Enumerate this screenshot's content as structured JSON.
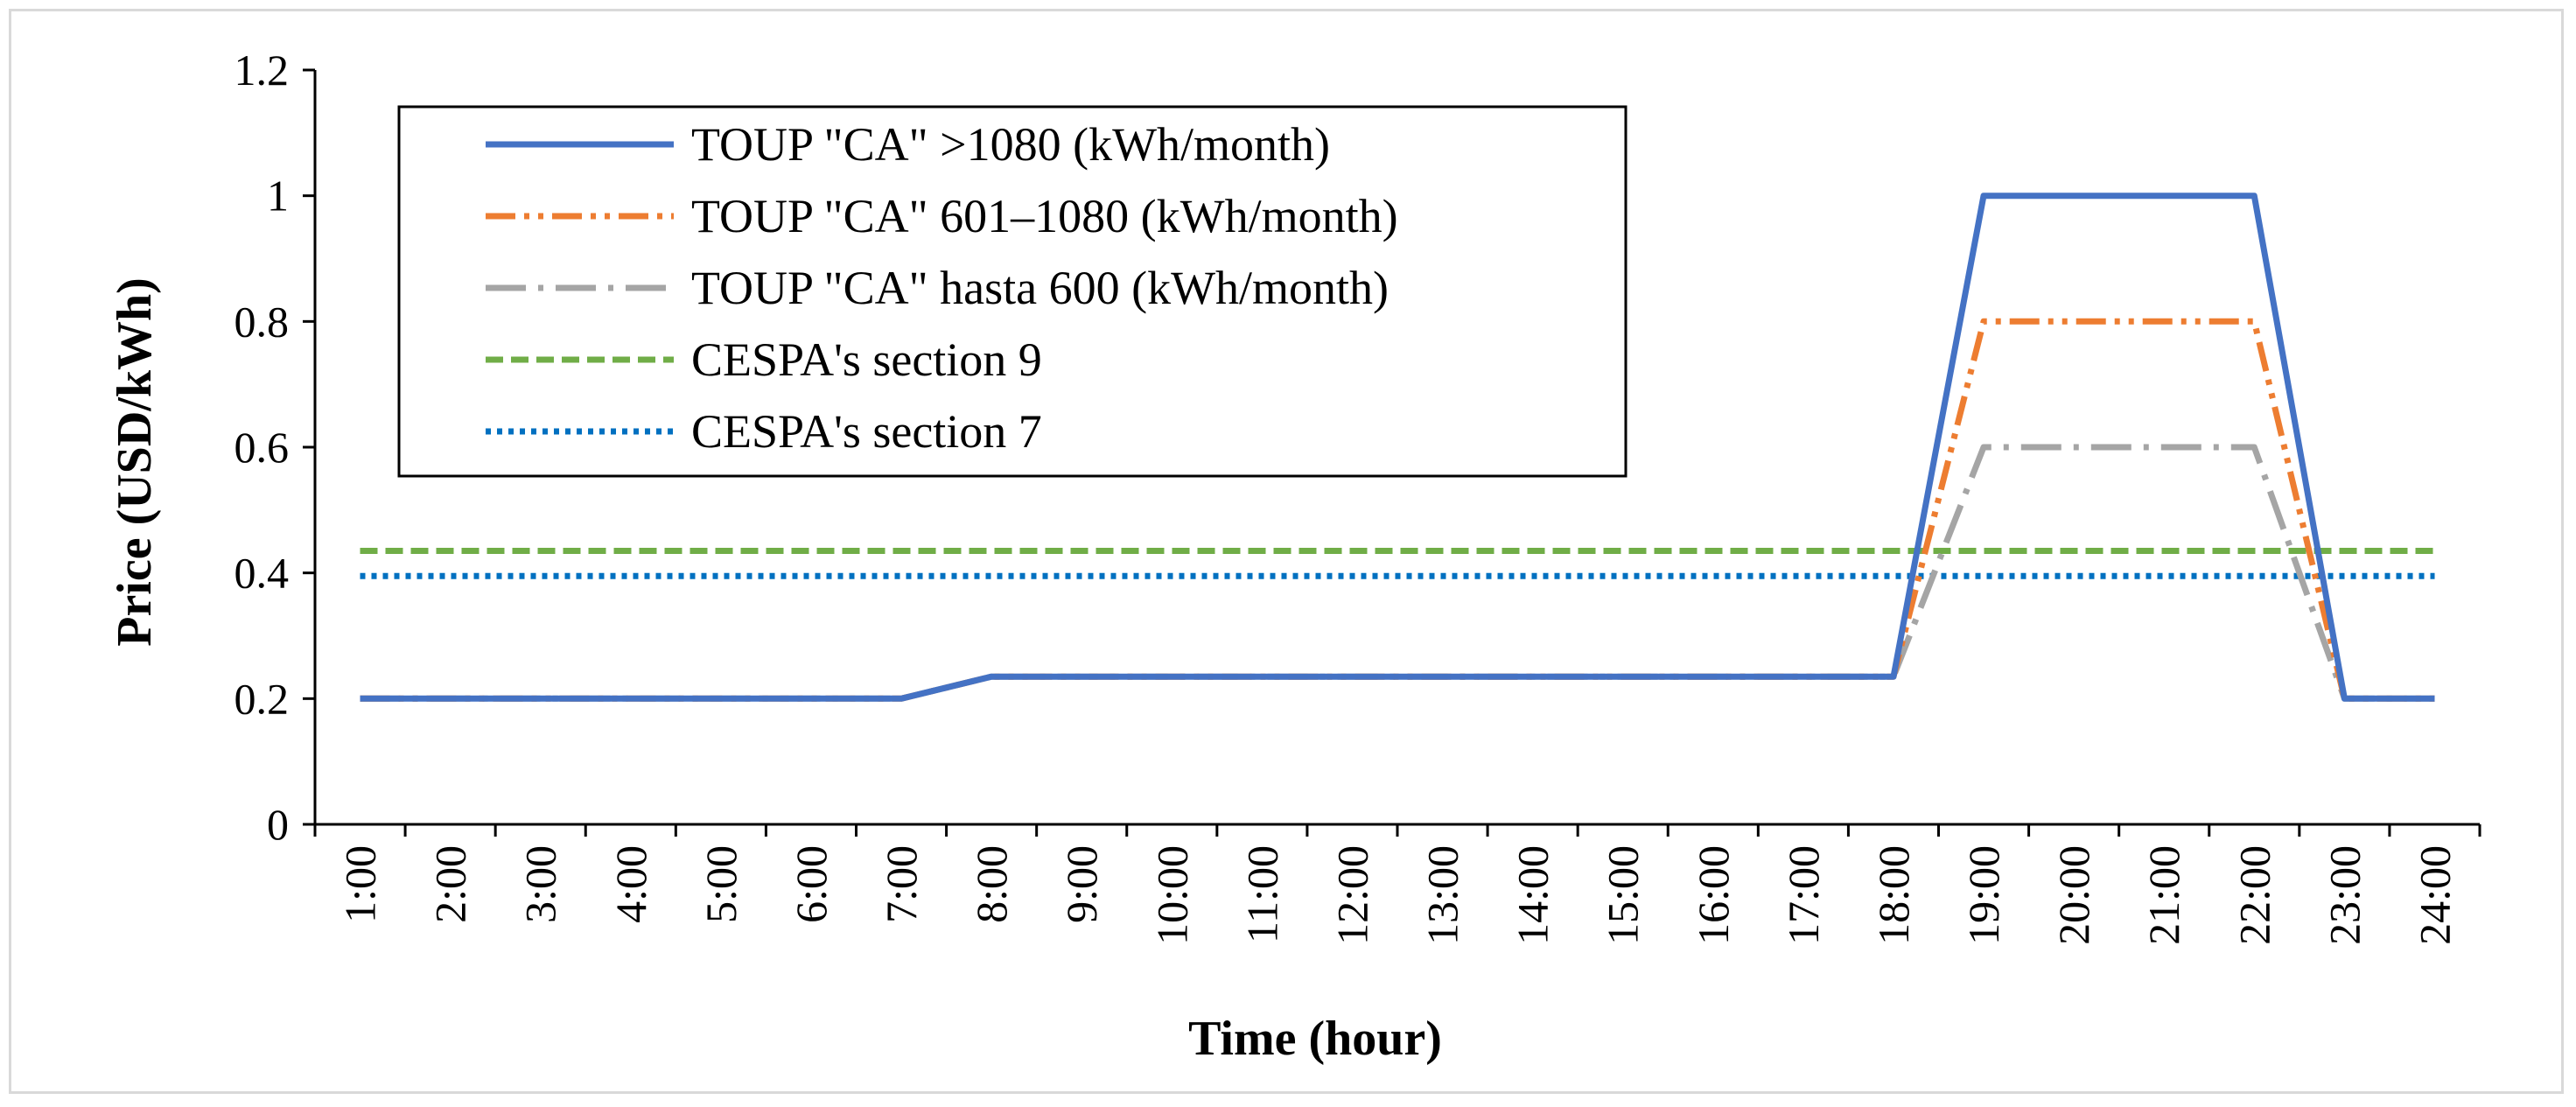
{
  "chart_data": {
    "type": "line",
    "title": "",
    "xlabel": "Time (hour)",
    "ylabel": "Price (USD/kWh)",
    "ylim": [
      0,
      1.2
    ],
    "yticks": [
      0,
      0.2,
      0.4,
      0.6,
      0.8,
      1,
      1.2
    ],
    "ytick_labels": [
      "0",
      "0.2",
      "0.4",
      "0.6",
      "0.8",
      "1",
      "1.2"
    ],
    "categories": [
      "1:00",
      "2:00",
      "3:00",
      "4:00",
      "5:00",
      "6:00",
      "7:00",
      "8:00",
      "9:00",
      "10:00",
      "11:00",
      "12:00",
      "13:00",
      "14:00",
      "15:00",
      "16:00",
      "17:00",
      "18:00",
      "19:00",
      "20:00",
      "21:00",
      "22:00",
      "23:00",
      "24:00"
    ],
    "legend_position": "top-left",
    "series": [
      {
        "name": "TOUP \"CA\" >1080 (kWh/month)",
        "color": "#4472C4",
        "style": "solid",
        "values": [
          0.2,
          0.2,
          0.2,
          0.2,
          0.2,
          0.2,
          0.2,
          0.235,
          0.235,
          0.235,
          0.235,
          0.235,
          0.235,
          0.235,
          0.235,
          0.235,
          0.235,
          0.235,
          1.0,
          1.0,
          1.0,
          1.0,
          0.2,
          0.2
        ]
      },
      {
        "name": "TOUP \"CA\" 601–1080 (kWh/month)",
        "color": "#ED7D31",
        "style": "dash-dot-dot",
        "values": [
          0.2,
          0.2,
          0.2,
          0.2,
          0.2,
          0.2,
          0.2,
          0.235,
          0.235,
          0.235,
          0.235,
          0.235,
          0.235,
          0.235,
          0.235,
          0.235,
          0.235,
          0.235,
          0.8,
          0.8,
          0.8,
          0.8,
          0.2,
          0.2
        ]
      },
      {
        "name": "TOUP \"CA\" hasta 600 (kWh/month)",
        "color": "#A5A5A5",
        "style": "long-dash-dot",
        "values": [
          0.2,
          0.2,
          0.2,
          0.2,
          0.2,
          0.2,
          0.2,
          0.235,
          0.235,
          0.235,
          0.235,
          0.235,
          0.235,
          0.235,
          0.235,
          0.235,
          0.235,
          0.235,
          0.6,
          0.6,
          0.6,
          0.6,
          0.2,
          0.2
        ]
      },
      {
        "name": "CESPA's section 9",
        "color": "#70AD47",
        "style": "dash",
        "values": [
          0.435,
          0.435,
          0.435,
          0.435,
          0.435,
          0.435,
          0.435,
          0.435,
          0.435,
          0.435,
          0.435,
          0.435,
          0.435,
          0.435,
          0.435,
          0.435,
          0.435,
          0.435,
          0.435,
          0.435,
          0.435,
          0.435,
          0.435,
          0.435
        ]
      },
      {
        "name": "CESPA's section 7",
        "color": "#0070C0",
        "style": "dot",
        "values": [
          0.395,
          0.395,
          0.395,
          0.395,
          0.395,
          0.395,
          0.395,
          0.395,
          0.395,
          0.395,
          0.395,
          0.395,
          0.395,
          0.395,
          0.395,
          0.395,
          0.395,
          0.395,
          0.395,
          0.395,
          0.395,
          0.395,
          0.395,
          0.395
        ]
      }
    ]
  }
}
